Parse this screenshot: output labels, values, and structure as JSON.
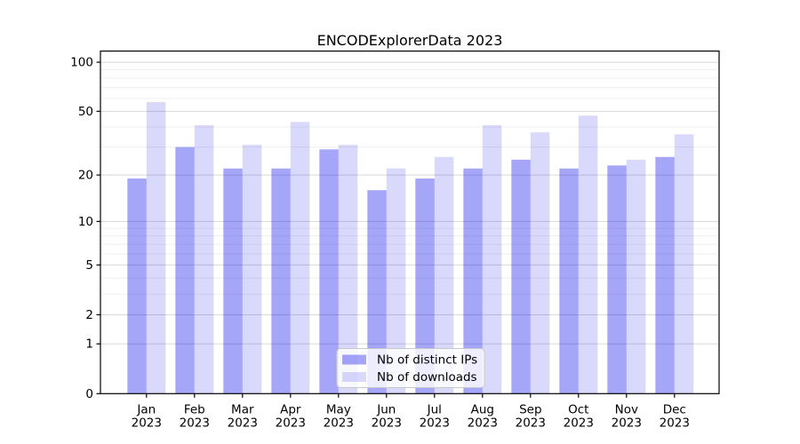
{
  "title": "ENCODExplorerData 2023",
  "chart_data": {
    "type": "bar",
    "title": "ENCODExplorerData 2023",
    "categories": [
      "Jan 2023",
      "Feb 2023",
      "Mar 2023",
      "Apr 2023",
      "May 2023",
      "Jun 2023",
      "Jul 2023",
      "Aug 2023",
      "Sep 2023",
      "Oct 2023",
      "Nov 2023",
      "Dec 2023"
    ],
    "x_tick_months": [
      "Jan",
      "Feb",
      "Mar",
      "Apr",
      "May",
      "Jun",
      "Jul",
      "Aug",
      "Sep",
      "Oct",
      "Nov",
      "Dec"
    ],
    "x_tick_year": "2023",
    "series": [
      {
        "name": "Nb of distinct IPs",
        "values": [
          19,
          30,
          22,
          22,
          29,
          16,
          19,
          22,
          25,
          22,
          23,
          26
        ]
      },
      {
        "name": "Nb of downloads",
        "values": [
          57,
          41,
          31,
          43,
          31,
          22,
          26,
          41,
          37,
          47,
          25,
          36
        ]
      }
    ],
    "xlabel": "",
    "ylabel": "",
    "yscale": "log1p",
    "ylim": [
      0,
      117
    ],
    "ytick_values": [
      0,
      1,
      2,
      5,
      10,
      20,
      50,
      100
    ],
    "ytick_labels": [
      "0",
      "1",
      "2",
      "5",
      "10",
      "20",
      "50",
      "100"
    ],
    "minor_ytick_values": [
      3,
      4,
      6,
      7,
      8,
      9,
      30,
      40,
      60,
      70,
      80,
      90
    ],
    "grid": true,
    "legend_position": "lower center"
  },
  "legend": {
    "items": [
      {
        "label": "Nb of distinct IPs",
        "swatch": "dark"
      },
      {
        "label": "Nb of downloads",
        "swatch": "light"
      }
    ]
  },
  "colors": {
    "bar_base": "#0000ee",
    "bar_opacity_distinct_ips": 0.35,
    "bar_opacity_downloads": 0.15,
    "grid_major": "#d8d8d8",
    "grid_minor": "#efefef",
    "spine": "#000000",
    "text": "#000000",
    "legend_border": "#c8c8c8",
    "legend_bg_white": "#ffffff"
  }
}
